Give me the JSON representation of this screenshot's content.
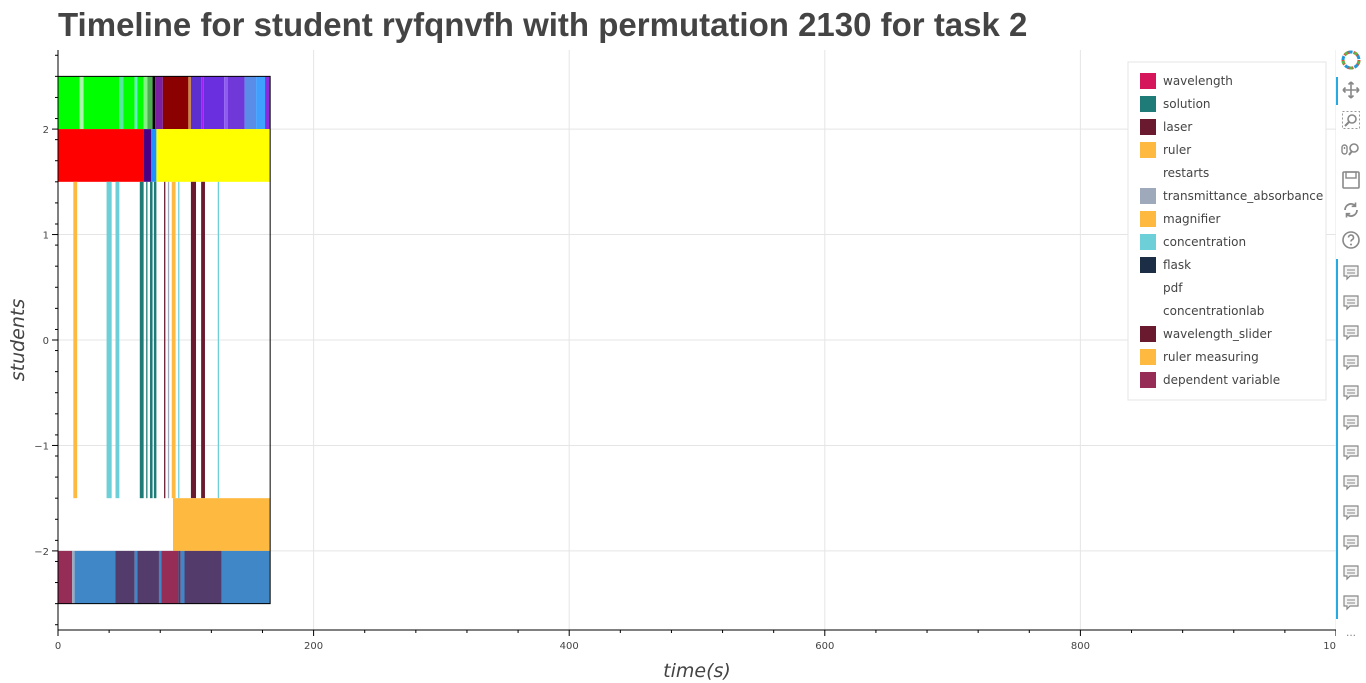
{
  "chart_data": {
    "type": "timeline",
    "title": "Timeline for student ryfqnvfh with permutation 2130 for task 2",
    "xlabel": "time(s)",
    "ylabel": "students",
    "xlim": [
      0,
      1000
    ],
    "ylim": [
      -2.75,
      2.75
    ],
    "x_ticks": [
      0,
      200,
      400,
      600,
      800,
      1000
    ],
    "y_ticks": [
      -2,
      -1,
      0,
      1,
      2
    ],
    "y_tick_labels": [
      "−2",
      "−1",
      "0",
      "1",
      "2"
    ],
    "grid": true,
    "legend_position": "top-right",
    "legend": [
      {
        "name": "wavelength",
        "color": "#d6165a"
      },
      {
        "name": "solution",
        "color": "#1f7b77"
      },
      {
        "name": "laser",
        "color": "#6a1a2e"
      },
      {
        "name": "ruler",
        "color": "#fdb940"
      },
      {
        "name": "restarts",
        "color": "#ffffff"
      },
      {
        "name": "transmittance_absorbance",
        "color": "#9ea9bb"
      },
      {
        "name": "magnifier",
        "color": "#fdb940"
      },
      {
        "name": "concentration",
        "color": "#6dd0d8"
      },
      {
        "name": "flask",
        "color": "#1b2e45"
      },
      {
        "name": "pdf",
        "color": "#ffffff"
      },
      {
        "name": "concentrationlab",
        "color": "#ffffff"
      },
      {
        "name": "wavelength_slider",
        "color": "#6a1a2e"
      },
      {
        "name": "ruler measuring",
        "color": "#fdb940"
      },
      {
        "name": "dependent variable",
        "color": "#952d56"
      }
    ],
    "rows": [
      {
        "y_range": [
          2,
          2.5
        ],
        "segments": [
          {
            "start": 0,
            "end": 17,
            "color": "#00ff00"
          },
          {
            "start": 17,
            "end": 20,
            "color": "#a9f5a9"
          },
          {
            "start": 20,
            "end": 48,
            "color": "#00ff00"
          },
          {
            "start": 48,
            "end": 51,
            "color": "#57e8a0"
          },
          {
            "start": 51,
            "end": 60,
            "color": "#00ff00"
          },
          {
            "start": 60,
            "end": 62,
            "color": "#64f0c8"
          },
          {
            "start": 62,
            "end": 67,
            "color": "#00ff00"
          },
          {
            "start": 67,
            "end": 70,
            "color": "#86f086"
          },
          {
            "start": 70,
            "end": 74,
            "color": "#4caf50"
          },
          {
            "start": 74,
            "end": 76,
            "color": "#000000"
          },
          {
            "start": 76,
            "end": 82,
            "color": "#7b1fa2"
          },
          {
            "start": 82,
            "end": 102,
            "color": "#8b0000"
          },
          {
            "start": 102,
            "end": 104,
            "color": "#cd853f"
          },
          {
            "start": 104,
            "end": 112,
            "color": "#5b2fd0"
          },
          {
            "start": 112,
            "end": 114,
            "color": "#a020f0"
          },
          {
            "start": 114,
            "end": 130,
            "color": "#6a30e0"
          },
          {
            "start": 130,
            "end": 133,
            "color": "#8e5cf0"
          },
          {
            "start": 133,
            "end": 146,
            "color": "#7038d8"
          },
          {
            "start": 146,
            "end": 155,
            "color": "#5a8de8"
          },
          {
            "start": 155,
            "end": 162,
            "color": "#40a0ff"
          },
          {
            "start": 162,
            "end": 166,
            "color": "#8a2be2"
          }
        ]
      },
      {
        "y_range": [
          1.5,
          2
        ],
        "segments": [
          {
            "start": 0,
            "end": 67,
            "color": "#ff0000"
          },
          {
            "start": 67,
            "end": 73,
            "color": "#4b0082"
          },
          {
            "start": 73,
            "end": 77,
            "color": "#1e90ff"
          },
          {
            "start": 77,
            "end": 166,
            "color": "#ffff00"
          }
        ]
      },
      {
        "y_range": [
          -1.5,
          1.5
        ],
        "segments": [
          {
            "start": 12,
            "end": 15,
            "color": "#fdb940"
          },
          {
            "start": 38,
            "end": 42,
            "color": "#6dd0d8"
          },
          {
            "start": 45,
            "end": 48,
            "color": "#6dd0d8"
          },
          {
            "start": 64,
            "end": 67,
            "color": "#1f7b77"
          },
          {
            "start": 69,
            "end": 70,
            "color": "#1f7b77"
          },
          {
            "start": 72,
            "end": 74,
            "color": "#1f7b77"
          },
          {
            "start": 75,
            "end": 77,
            "color": "#1f7b77"
          },
          {
            "start": 83,
            "end": 84,
            "color": "#6a1a2e"
          },
          {
            "start": 86,
            "end": 87,
            "color": "#9ea9bb"
          },
          {
            "start": 89,
            "end": 92,
            "color": "#fdb940"
          },
          {
            "start": 94,
            "end": 95,
            "color": "#6dd0d8"
          },
          {
            "start": 104,
            "end": 108,
            "color": "#6a1a2e"
          },
          {
            "start": 112,
            "end": 115,
            "color": "#6a1a2e"
          },
          {
            "start": 125,
            "end": 126,
            "color": "#6dd0d8"
          }
        ]
      },
      {
        "y_range": [
          -2,
          -1.5
        ],
        "segments": [
          {
            "start": 90,
            "end": 166,
            "color": "#fdb940"
          }
        ]
      },
      {
        "y_range": [
          -2.5,
          -2
        ],
        "segments": [
          {
            "start": 0,
            "end": 11,
            "color": "#952d56"
          },
          {
            "start": 11,
            "end": 13,
            "color": "#9ea9bb"
          },
          {
            "start": 13,
            "end": 45,
            "color": "#3f87c7"
          },
          {
            "start": 45,
            "end": 60,
            "color": "#533b6b"
          },
          {
            "start": 60,
            "end": 62,
            "color": "#3f87c7"
          },
          {
            "start": 62,
            "end": 79,
            "color": "#533b6b"
          },
          {
            "start": 79,
            "end": 81,
            "color": "#3f87c7"
          },
          {
            "start": 81,
            "end": 94,
            "color": "#952d56"
          },
          {
            "start": 94,
            "end": 96,
            "color": "#533b6b"
          },
          {
            "start": 96,
            "end": 99,
            "color": "#3f87c7"
          },
          {
            "start": 99,
            "end": 128,
            "color": "#533b6b"
          },
          {
            "start": 128,
            "end": 166,
            "color": "#3f87c7"
          }
        ]
      }
    ],
    "data_border": {
      "x_range": [
        0,
        166
      ],
      "y_range": [
        -2.5,
        2.5
      ]
    }
  },
  "toolbar": {
    "tools": [
      {
        "name": "bokeh-logo-icon",
        "active": false
      },
      {
        "name": "pan-icon",
        "active": true
      },
      {
        "name": "box-zoom-icon",
        "active": false
      },
      {
        "name": "wheel-zoom-icon",
        "active": false
      },
      {
        "name": "save-icon",
        "active": false
      },
      {
        "name": "reset-icon",
        "active": false
      },
      {
        "name": "help-icon",
        "active": false
      }
    ],
    "hover_tool_count": 12,
    "more_label": "..."
  }
}
